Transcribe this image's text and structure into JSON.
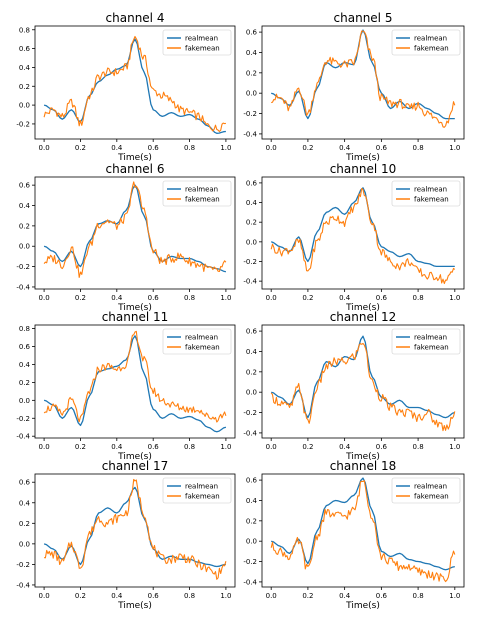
{
  "figure": {
    "x_label": "Time(s)",
    "legend": [
      "realmean",
      "fakemean"
    ],
    "series_colors": {
      "realmean": "#1f77b4",
      "fakemean": "#ff7f0e"
    }
  },
  "chart_data": [
    {
      "type": "line",
      "title": "channel 4",
      "xlabel": "Time(s)",
      "xlim": [
        -0.05,
        1.05
      ],
      "ylim": [
        -0.36,
        0.84
      ],
      "xticks": [
        0.0,
        0.2,
        0.4,
        0.6,
        0.8,
        1.0
      ],
      "xtick_labels": [
        "0.0",
        "0.2",
        "0.4",
        "0.6",
        "0.8",
        "1.0"
      ],
      "yticks": [
        -0.2,
        0.0,
        0.2,
        0.4,
        0.6,
        0.8
      ],
      "ytick_labels": [
        "-0.2",
        "0.0",
        "0.2",
        "0.4",
        "0.6",
        "0.8"
      ],
      "legend_position": "top-right",
      "x": [
        0,
        0.05,
        0.1,
        0.15,
        0.2,
        0.25,
        0.3,
        0.35,
        0.4,
        0.45,
        0.5,
        0.55,
        0.6,
        0.65,
        0.7,
        0.75,
        0.8,
        0.85,
        0.9,
        0.95,
        1.0
      ],
      "series": [
        {
          "name": "realmean",
          "values": [
            0.0,
            -0.05,
            -0.15,
            -0.05,
            -0.18,
            0.1,
            0.25,
            0.32,
            0.38,
            0.42,
            0.7,
            0.35,
            -0.05,
            -0.12,
            -0.08,
            -0.12,
            -0.1,
            -0.15,
            -0.22,
            -0.3,
            -0.28
          ]
        },
        {
          "name": "fakemean",
          "values": [
            -0.1,
            -0.05,
            -0.12,
            0.03,
            -0.2,
            0.1,
            0.3,
            0.35,
            0.35,
            0.4,
            0.72,
            0.5,
            0.15,
            0.1,
            0.05,
            -0.05,
            -0.08,
            -0.12,
            -0.22,
            -0.25,
            -0.18
          ]
        }
      ]
    },
    {
      "type": "line",
      "title": "channel 5",
      "xlabel": "Time(s)",
      "xlim": [
        -0.05,
        1.05
      ],
      "ylim": [
        -0.45,
        0.66
      ],
      "xticks": [
        0.0,
        0.2,
        0.4,
        0.6,
        0.8,
        1.0
      ],
      "xtick_labels": [
        "0.0",
        "0.2",
        "0.4",
        "0.6",
        "0.8",
        "1.0"
      ],
      "yticks": [
        -0.4,
        -0.2,
        0.0,
        0.2,
        0.4,
        0.6
      ],
      "ytick_labels": [
        "-0.4",
        "-0.2",
        "0.0",
        "0.2",
        "0.4",
        "0.6"
      ],
      "legend_position": "top-right",
      "x": [
        0,
        0.05,
        0.1,
        0.15,
        0.2,
        0.25,
        0.3,
        0.35,
        0.4,
        0.45,
        0.5,
        0.55,
        0.6,
        0.65,
        0.7,
        0.75,
        0.8,
        0.85,
        0.9,
        0.95,
        1.0
      ],
      "series": [
        {
          "name": "realmean",
          "values": [
            0.0,
            -0.05,
            -0.12,
            0.02,
            -0.25,
            0.05,
            0.3,
            0.25,
            0.3,
            0.28,
            0.62,
            0.3,
            0.0,
            -0.15,
            -0.08,
            -0.15,
            -0.1,
            -0.15,
            -0.2,
            -0.25,
            -0.25
          ]
        },
        {
          "name": "fakemean",
          "values": [
            -0.05,
            -0.05,
            -0.15,
            0.05,
            -0.2,
            0.08,
            0.32,
            0.3,
            0.28,
            0.3,
            0.6,
            0.35,
            -0.05,
            -0.1,
            -0.1,
            -0.15,
            -0.12,
            -0.2,
            -0.25,
            -0.3,
            -0.1
          ]
        }
      ]
    },
    {
      "type": "line",
      "title": "channel 6",
      "xlabel": "Time(s)",
      "xlim": [
        -0.05,
        1.05
      ],
      "ylim": [
        -0.42,
        0.68
      ],
      "xticks": [
        0.0,
        0.2,
        0.4,
        0.6,
        0.8,
        1.0
      ],
      "xtick_labels": [
        "0.0",
        "0.2",
        "0.4",
        "0.6",
        "0.8",
        "1.0"
      ],
      "yticks": [
        -0.4,
        -0.2,
        0.0,
        0.2,
        0.4,
        0.6
      ],
      "ytick_labels": [
        "-0.4",
        "-0.2",
        "0.0",
        "0.2",
        "0.4",
        "0.6"
      ],
      "legend_position": "top-right",
      "x": [
        0,
        0.05,
        0.1,
        0.15,
        0.2,
        0.25,
        0.3,
        0.35,
        0.4,
        0.45,
        0.5,
        0.55,
        0.6,
        0.65,
        0.7,
        0.75,
        0.8,
        0.85,
        0.9,
        0.95,
        1.0
      ],
      "series": [
        {
          "name": "realmean",
          "values": [
            0.0,
            -0.05,
            -0.15,
            -0.05,
            -0.2,
            0.05,
            0.22,
            0.25,
            0.22,
            0.35,
            0.6,
            0.3,
            -0.05,
            -0.15,
            -0.1,
            -0.12,
            -0.12,
            -0.15,
            -0.2,
            -0.22,
            -0.25
          ]
        },
        {
          "name": "fakemean",
          "values": [
            -0.15,
            -0.12,
            -0.18,
            -0.02,
            -0.28,
            0.0,
            0.22,
            0.25,
            0.2,
            0.28,
            0.62,
            0.35,
            -0.05,
            -0.15,
            -0.12,
            -0.1,
            -0.15,
            -0.18,
            -0.22,
            -0.25,
            -0.18
          ]
        }
      ]
    },
    {
      "type": "line",
      "title": "channel 10",
      "xlabel": "Time(s)",
      "xlim": [
        -0.05,
        1.05
      ],
      "ylim": [
        -0.48,
        0.66
      ],
      "xticks": [
        0.0,
        0.2,
        0.4,
        0.6,
        0.8,
        1.0
      ],
      "xtick_labels": [
        "0.0",
        "0.2",
        "0.4",
        "0.6",
        "0.8",
        "1.0"
      ],
      "yticks": [
        -0.4,
        -0.2,
        0.0,
        0.2,
        0.4,
        0.6
      ],
      "ytick_labels": [
        "-0.4",
        "-0.2",
        "0.0",
        "0.2",
        "0.4",
        "0.6"
      ],
      "legend_position": "top-right",
      "x": [
        0,
        0.05,
        0.1,
        0.15,
        0.2,
        0.25,
        0.3,
        0.35,
        0.4,
        0.45,
        0.5,
        0.55,
        0.6,
        0.65,
        0.7,
        0.75,
        0.8,
        0.85,
        0.9,
        0.95,
        1.0
      ],
      "series": [
        {
          "name": "realmean",
          "values": [
            0.0,
            -0.05,
            -0.1,
            0.05,
            -0.2,
            0.1,
            0.3,
            0.35,
            0.28,
            0.4,
            0.55,
            0.2,
            -0.05,
            -0.1,
            -0.15,
            -0.12,
            -0.2,
            -0.22,
            -0.25,
            -0.25,
            -0.25
          ]
        },
        {
          "name": "fakemean",
          "values": [
            -0.05,
            -0.1,
            -0.08,
            0.0,
            -0.3,
            0.0,
            0.2,
            0.25,
            0.2,
            0.35,
            0.52,
            0.2,
            -0.1,
            -0.2,
            -0.25,
            -0.2,
            -0.3,
            -0.35,
            -0.35,
            -0.4,
            -0.28
          ]
        }
      ]
    },
    {
      "type": "line",
      "title": "channel 11",
      "xlabel": "Time(s)",
      "xlim": [
        -0.05,
        1.05
      ],
      "ylim": [
        -0.42,
        0.84
      ],
      "xticks": [
        0.0,
        0.2,
        0.4,
        0.6,
        0.8,
        1.0
      ],
      "xtick_labels": [
        "0.0",
        "0.2",
        "0.4",
        "0.6",
        "0.8",
        "1.0"
      ],
      "yticks": [
        -0.4,
        -0.2,
        0.0,
        0.2,
        0.4,
        0.6,
        0.8
      ],
      "ytick_labels": [
        "-0.4",
        "-0.2",
        "0.0",
        "0.2",
        "0.4",
        "0.6",
        "0.8"
      ],
      "legend_position": "top-right",
      "x": [
        0,
        0.05,
        0.1,
        0.15,
        0.2,
        0.25,
        0.3,
        0.35,
        0.4,
        0.45,
        0.5,
        0.55,
        0.6,
        0.65,
        0.7,
        0.75,
        0.8,
        0.85,
        0.9,
        0.95,
        1.0
      ],
      "series": [
        {
          "name": "realmean",
          "values": [
            0.0,
            -0.05,
            -0.2,
            -0.08,
            -0.28,
            0.05,
            0.32,
            0.35,
            0.38,
            0.45,
            0.72,
            0.3,
            -0.1,
            -0.2,
            -0.15,
            -0.2,
            -0.18,
            -0.22,
            -0.3,
            -0.35,
            -0.3
          ]
        },
        {
          "name": "fakemean",
          "values": [
            -0.1,
            -0.08,
            -0.15,
            0.0,
            -0.22,
            0.1,
            0.35,
            0.38,
            0.35,
            0.4,
            0.75,
            0.45,
            0.1,
            0.0,
            -0.05,
            -0.08,
            -0.1,
            -0.1,
            -0.18,
            -0.2,
            -0.15
          ]
        }
      ]
    },
    {
      "type": "line",
      "title": "channel 12",
      "xlabel": "Time(s)",
      "xlim": [
        -0.05,
        1.05
      ],
      "ylim": [
        -0.45,
        0.66
      ],
      "xticks": [
        0.0,
        0.2,
        0.4,
        0.6,
        0.8,
        1.0
      ],
      "xtick_labels": [
        "0.0",
        "0.2",
        "0.4",
        "0.6",
        "0.8",
        "1.0"
      ],
      "yticks": [
        -0.4,
        -0.2,
        0.0,
        0.2,
        0.4,
        0.6
      ],
      "ytick_labels": [
        "-0.4",
        "-0.2",
        "0.0",
        "0.2",
        "0.4",
        "0.6"
      ],
      "legend_position": "top-right",
      "x": [
        0,
        0.05,
        0.1,
        0.15,
        0.2,
        0.25,
        0.3,
        0.35,
        0.4,
        0.45,
        0.5,
        0.55,
        0.6,
        0.65,
        0.7,
        0.75,
        0.8,
        0.85,
        0.9,
        0.95,
        1.0
      ],
      "series": [
        {
          "name": "realmean",
          "values": [
            0.0,
            -0.05,
            -0.12,
            0.02,
            -0.25,
            0.1,
            0.3,
            0.25,
            0.35,
            0.32,
            0.55,
            0.15,
            -0.05,
            -0.12,
            -0.08,
            -0.15,
            -0.15,
            -0.18,
            -0.22,
            -0.25,
            -0.2
          ]
        },
        {
          "name": "fakemean",
          "values": [
            -0.05,
            -0.1,
            -0.15,
            0.05,
            -0.3,
            0.05,
            0.25,
            0.3,
            0.3,
            0.35,
            0.5,
            0.1,
            -0.05,
            -0.15,
            -0.2,
            -0.2,
            -0.25,
            -0.2,
            -0.3,
            -0.35,
            -0.2
          ]
        }
      ]
    },
    {
      "type": "line",
      "title": "channel 17",
      "xlabel": "Time(s)",
      "xlim": [
        -0.05,
        1.05
      ],
      "ylim": [
        -0.42,
        0.68
      ],
      "xticks": [
        0.0,
        0.2,
        0.4,
        0.6,
        0.8,
        1.0
      ],
      "xtick_labels": [
        "0.0",
        "0.2",
        "0.4",
        "0.6",
        "0.8",
        "1.0"
      ],
      "yticks": [
        -0.4,
        -0.2,
        0.0,
        0.2,
        0.4,
        0.6
      ],
      "ytick_labels": [
        "-0.4",
        "-0.2",
        "0.0",
        "0.2",
        "0.4",
        "0.6"
      ],
      "legend_position": "top-right",
      "x": [
        0,
        0.05,
        0.1,
        0.15,
        0.2,
        0.25,
        0.3,
        0.35,
        0.4,
        0.45,
        0.5,
        0.55,
        0.6,
        0.65,
        0.7,
        0.75,
        0.8,
        0.85,
        0.9,
        0.95,
        1.0
      ],
      "series": [
        {
          "name": "realmean",
          "values": [
            0.0,
            -0.05,
            -0.15,
            -0.02,
            -0.2,
            0.05,
            0.3,
            0.35,
            0.3,
            0.4,
            0.55,
            0.25,
            -0.05,
            -0.15,
            -0.12,
            -0.15,
            -0.15,
            -0.18,
            -0.2,
            -0.22,
            -0.2
          ]
        },
        {
          "name": "fakemean",
          "values": [
            -0.1,
            -0.1,
            -0.18,
            0.0,
            -0.22,
            0.1,
            0.25,
            0.2,
            0.25,
            0.3,
            0.6,
            0.3,
            -0.05,
            -0.15,
            -0.15,
            -0.12,
            -0.15,
            -0.2,
            -0.25,
            -0.3,
            -0.2
          ]
        }
      ]
    },
    {
      "type": "line",
      "title": "channel 18",
      "xlabel": "Time(s)",
      "xlim": [
        -0.05,
        1.05
      ],
      "ylim": [
        -0.45,
        0.66
      ],
      "xticks": [
        0.0,
        0.2,
        0.4,
        0.6,
        0.8,
        1.0
      ],
      "xtick_labels": [
        "0.0",
        "0.2",
        "0.4",
        "0.6",
        "0.8",
        "1.0"
      ],
      "yticks": [
        -0.4,
        -0.2,
        0.0,
        0.2,
        0.4,
        0.6
      ],
      "ytick_labels": [
        "-0.4",
        "-0.2",
        "0.0",
        "0.2",
        "0.4",
        "0.6"
      ],
      "legend_position": "top-right",
      "x": [
        0,
        0.05,
        0.1,
        0.15,
        0.2,
        0.25,
        0.3,
        0.35,
        0.4,
        0.45,
        0.5,
        0.55,
        0.6,
        0.65,
        0.7,
        0.75,
        0.8,
        0.85,
        0.9,
        0.95,
        1.0
      ],
      "series": [
        {
          "name": "realmean",
          "values": [
            0.0,
            -0.05,
            -0.12,
            0.02,
            -0.22,
            0.1,
            0.35,
            0.4,
            0.38,
            0.45,
            0.62,
            0.3,
            -0.1,
            -0.15,
            -0.12,
            -0.18,
            -0.2,
            -0.22,
            -0.25,
            -0.28,
            -0.25
          ]
        },
        {
          "name": "fakemean",
          "values": [
            -0.05,
            -0.1,
            -0.15,
            0.0,
            -0.28,
            0.05,
            0.28,
            0.25,
            0.25,
            0.3,
            0.6,
            0.25,
            -0.15,
            -0.2,
            -0.25,
            -0.25,
            -0.3,
            -0.32,
            -0.35,
            -0.38,
            -0.1
          ]
        }
      ]
    }
  ]
}
